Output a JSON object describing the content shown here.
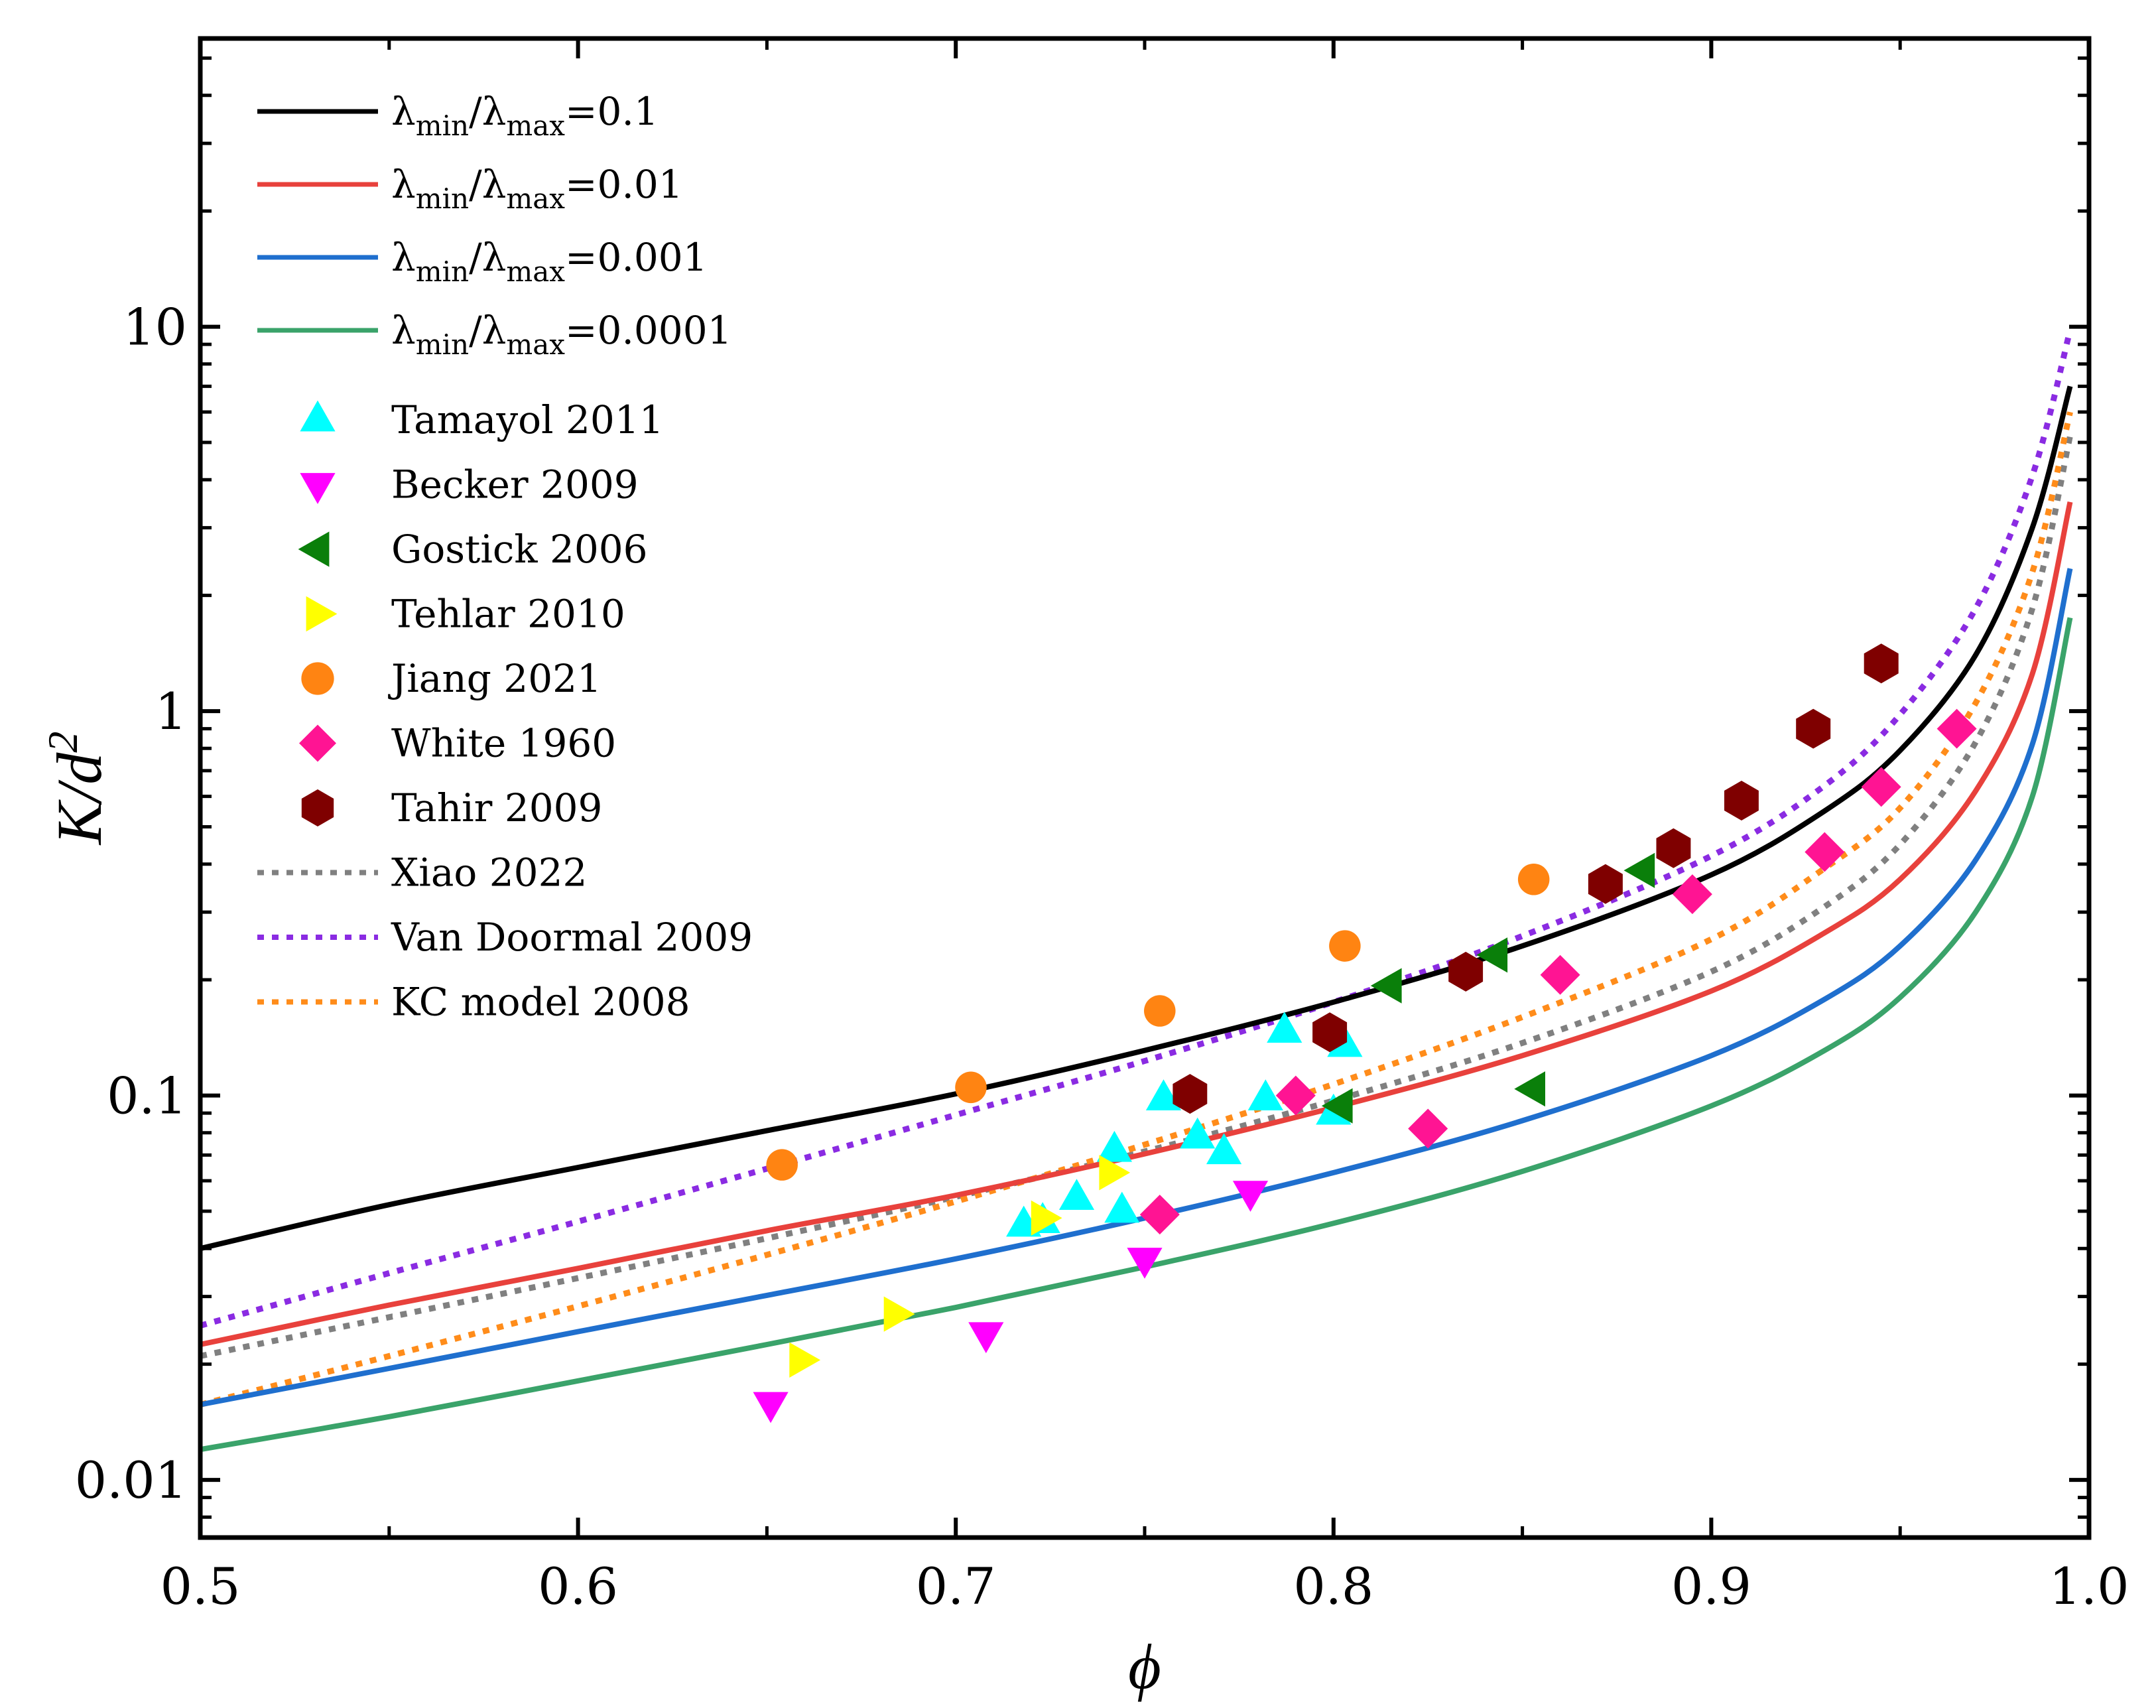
{
  "chart_data": {
    "type": "line+scatter",
    "xlabel": "ϕ",
    "ylabel": {
      "base": "K/d",
      "sup": "2"
    },
    "xlim": [
      0.5,
      1.0
    ],
    "ylim_log10": [
      -2.15,
      1.75
    ],
    "xticks": [
      {
        "value": 0.5,
        "label": "0.5"
      },
      {
        "value": 0.6,
        "label": "0.6"
      },
      {
        "value": 0.7,
        "label": "0.7"
      },
      {
        "value": 0.8,
        "label": "0.8"
      },
      {
        "value": 0.9,
        "label": "0.9"
      },
      {
        "value": 1.0,
        "label": "1.0"
      }
    ],
    "yticks": [
      {
        "value": 0.01,
        "label": "0.01"
      },
      {
        "value": 0.1,
        "label": "0.1"
      },
      {
        "value": 1,
        "label": "1"
      },
      {
        "value": 10,
        "label": "10"
      }
    ],
    "line_series": [
      {
        "label_parts": [
          "λ",
          "min",
          "/λ",
          "max",
          "=0.1"
        ],
        "color": "#000000",
        "dash": "solid",
        "x": [
          0.5,
          0.55,
          0.6,
          0.65,
          0.7,
          0.75,
          0.8,
          0.85,
          0.9,
          0.93,
          0.95,
          0.97,
          0.985,
          0.995
        ],
        "y": [
          0.04,
          0.052,
          0.065,
          0.081,
          0.101,
          0.131,
          0.175,
          0.245,
          0.375,
          0.55,
          0.79,
          1.4,
          3.0,
          7.0
        ]
      },
      {
        "label_parts": [
          "λ",
          "min",
          "/λ",
          "max",
          "=0.01"
        ],
        "color": "#e8413c",
        "dash": "solid",
        "x": [
          0.5,
          0.55,
          0.6,
          0.65,
          0.7,
          0.75,
          0.8,
          0.85,
          0.9,
          0.93,
          0.95,
          0.97,
          0.985,
          0.995
        ],
        "y": [
          0.0225,
          0.0285,
          0.0355,
          0.0445,
          0.055,
          0.0705,
          0.093,
          0.127,
          0.187,
          0.265,
          0.365,
          0.62,
          1.25,
          3.5
        ]
      },
      {
        "label_parts": [
          "λ",
          "min",
          "/λ",
          "max",
          "=0.001"
        ],
        "color": "#1f6fce",
        "dash": "solid",
        "x": [
          0.5,
          0.55,
          0.6,
          0.65,
          0.7,
          0.75,
          0.8,
          0.85,
          0.9,
          0.93,
          0.95,
          0.97,
          0.985,
          0.995
        ],
        "y": [
          0.0157,
          0.0195,
          0.0243,
          0.0302,
          0.0376,
          0.048,
          0.063,
          0.086,
          0.127,
          0.178,
          0.245,
          0.41,
          0.82,
          2.35
        ]
      },
      {
        "label_parts": [
          "λ",
          "min",
          "/λ",
          "max",
          "=0.0001"
        ],
        "color": "#3aa36a",
        "dash": "solid",
        "x": [
          0.5,
          0.55,
          0.6,
          0.65,
          0.7,
          0.75,
          0.8,
          0.85,
          0.9,
          0.93,
          0.95,
          0.97,
          0.985,
          0.995
        ],
        "y": [
          0.012,
          0.0146,
          0.0181,
          0.0225,
          0.0281,
          0.0358,
          0.0465,
          0.0635,
          0.094,
          0.131,
          0.18,
          0.3,
          0.6,
          1.75
        ]
      },
      {
        "label_parts": [
          "Xiao 2022"
        ],
        "color": "#808080",
        "dash": "dot",
        "x": [
          0.5,
          0.55,
          0.6,
          0.65,
          0.7,
          0.75,
          0.8,
          0.85,
          0.9,
          0.93,
          0.95,
          0.97,
          0.985,
          0.995
        ],
        "y": [
          0.021,
          0.0265,
          0.0335,
          0.0425,
          0.0545,
          0.0715,
          0.097,
          0.137,
          0.21,
          0.31,
          0.45,
          0.83,
          1.85,
          5.2
        ]
      },
      {
        "label_parts": [
          "Van Doormal 2009"
        ],
        "color": "#8a2be2",
        "dash": "dot",
        "x": [
          0.5,
          0.55,
          0.6,
          0.65,
          0.7,
          0.75,
          0.8,
          0.85,
          0.9,
          0.93,
          0.95,
          0.97,
          0.985,
          0.995
        ],
        "y": [
          0.0252,
          0.0345,
          0.047,
          0.0645,
          0.089,
          0.123,
          0.175,
          0.26,
          0.42,
          0.64,
          0.98,
          1.85,
          4.1,
          9.8
        ]
      },
      {
        "label_parts": [
          "KC model 2008"
        ],
        "color": "#ff8c1a",
        "dash": "dot",
        "x": [
          0.5,
          0.55,
          0.6,
          0.65,
          0.7,
          0.75,
          0.8,
          0.85,
          0.9,
          0.93,
          0.95,
          0.97,
          0.985,
          0.995
        ],
        "y": [
          0.0157,
          0.021,
          0.0283,
          0.0385,
          0.053,
          0.0745,
          0.107,
          0.16,
          0.255,
          0.39,
          0.56,
          1.05,
          2.3,
          6.0
        ]
      }
    ],
    "scatter_series": [
      {
        "label": "Tamayol 2011",
        "marker": "triangle-up",
        "color": "#00ffff",
        "points": [
          [
            0.718,
            0.046
          ],
          [
            0.723,
            0.047
          ],
          [
            0.732,
            0.054
          ],
          [
            0.742,
            0.072
          ],
          [
            0.744,
            0.05
          ],
          [
            0.755,
            0.098
          ],
          [
            0.764,
            0.078
          ],
          [
            0.771,
            0.071
          ],
          [
            0.782,
            0.098
          ],
          [
            0.787,
            0.147
          ],
          [
            0.8,
            0.09
          ],
          [
            0.803,
            0.135
          ]
        ]
      },
      {
        "label": "Becker 2009",
        "marker": "triangle-down",
        "color": "#ff00ff",
        "points": [
          [
            0.651,
            0.0158
          ],
          [
            0.708,
            0.024
          ],
          [
            0.75,
            0.0375
          ],
          [
            0.778,
            0.056
          ]
        ]
      },
      {
        "label": "Gostick 2006",
        "marker": "triangle-left",
        "color": "#0a7f0a",
        "points": [
          [
            0.802,
            0.094
          ],
          [
            0.815,
            0.193
          ],
          [
            0.843,
            0.232
          ],
          [
            0.853,
            0.104
          ],
          [
            0.882,
            0.385
          ]
        ]
      },
      {
        "label": "Tehlar 2010",
        "marker": "triangle-right",
        "color": "#ffff00",
        "points": [
          [
            0.659,
            0.0205
          ],
          [
            0.684,
            0.027
          ],
          [
            0.723,
            0.048
          ],
          [
            0.741,
            0.063
          ]
        ]
      },
      {
        "label": "Jiang 2021",
        "marker": "circle",
        "color": "#ff8412",
        "points": [
          [
            0.654,
            0.066
          ],
          [
            0.704,
            0.105
          ],
          [
            0.754,
            0.166
          ],
          [
            0.803,
            0.245
          ],
          [
            0.853,
            0.365
          ]
        ]
      },
      {
        "label": "White 1960",
        "marker": "diamond",
        "color": "#ff1493",
        "points": [
          [
            0.754,
            0.049
          ],
          [
            0.79,
            0.1
          ],
          [
            0.825,
            0.082
          ],
          [
            0.86,
            0.206
          ],
          [
            0.895,
            0.334
          ],
          [
            0.93,
            0.43
          ],
          [
            0.945,
            0.635
          ],
          [
            0.965,
            0.9
          ]
        ]
      },
      {
        "label": "Tahir 2009",
        "marker": "hexagon",
        "color": "#7f0000",
        "points": [
          [
            0.762,
            0.101
          ],
          [
            0.799,
            0.146
          ],
          [
            0.835,
            0.21
          ],
          [
            0.872,
            0.355
          ],
          [
            0.89,
            0.44
          ],
          [
            0.908,
            0.585
          ],
          [
            0.927,
            0.9
          ],
          [
            0.945,
            1.33
          ]
        ]
      }
    ]
  }
}
